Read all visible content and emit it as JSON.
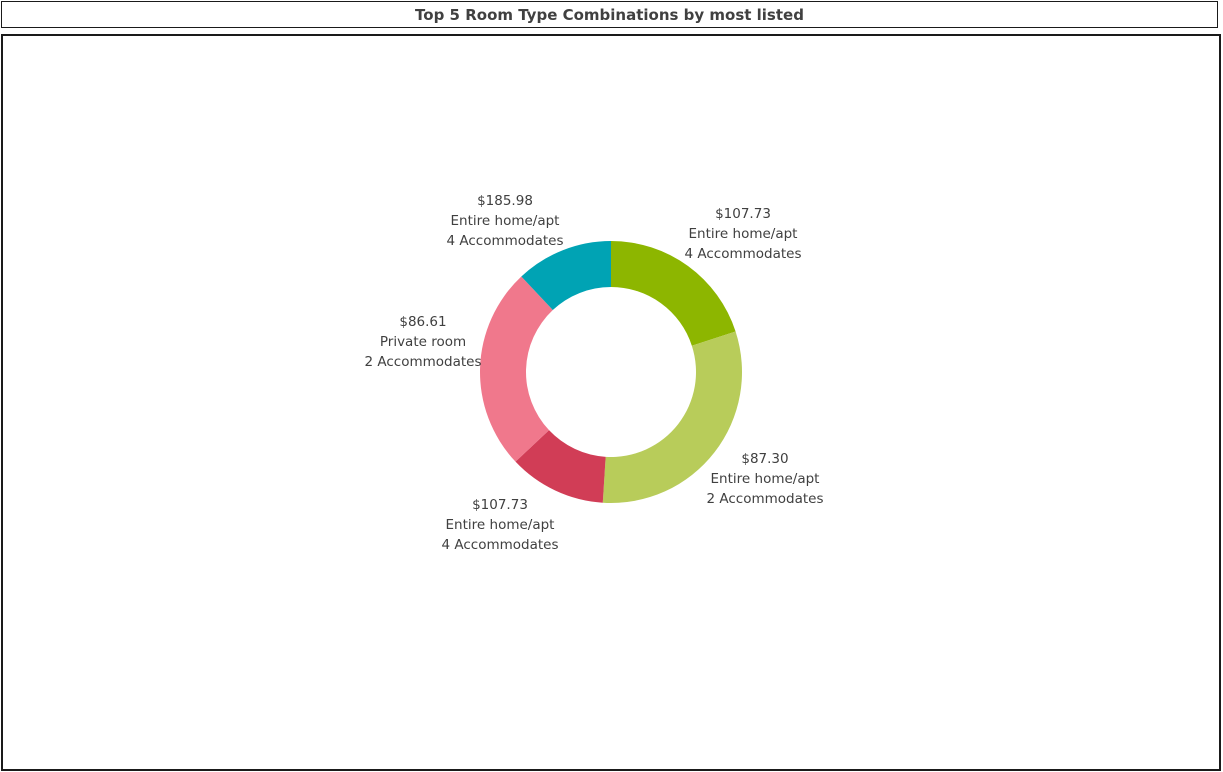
{
  "chart_data": {
    "type": "pie",
    "variant": "donut",
    "title": "Top 5 Room Type Combinations by most listed",
    "legend": "none",
    "slices": [
      {
        "value": 20,
        "color": "#8db600",
        "label_lines": [
          "$107.73",
          "Entire home/apt",
          "4 Accommodates"
        ]
      },
      {
        "value": 31,
        "color": "#b8cc5a",
        "label_lines": [
          "$87.30",
          "Entire home/apt",
          "2 Accommodates"
        ]
      },
      {
        "value": 12,
        "color": "#d13d56",
        "label_lines": [
          "$107.73",
          "Entire home/apt",
          "4 Accommodates"
        ]
      },
      {
        "value": 25,
        "color": "#f0788c",
        "label_lines": [
          "$86.61",
          "Private room",
          "2 Accommodates"
        ]
      },
      {
        "value": 12,
        "color": "#00a3b4",
        "label_lines": [
          "$185.98",
          "Entire home/apt",
          "4 Accommodates"
        ]
      }
    ]
  }
}
